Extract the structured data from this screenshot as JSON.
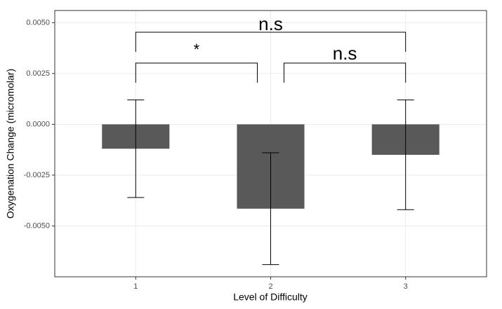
{
  "chart_data": {
    "type": "bar",
    "x_label": "Level of Difficulty",
    "y_label": "Oxygenation Change (micromolar)",
    "categories": [
      "1",
      "2",
      "3"
    ],
    "values": [
      -0.0012,
      -0.00415,
      -0.0015
    ],
    "errors": [
      0.0024,
      0.00275,
      0.0027
    ],
    "color": "#595959",
    "ylim": [
      -0.0075,
      0.0056
    ],
    "yticks": [
      {
        "value": -0.005,
        "label": "-0.0050"
      },
      {
        "value": -0.0025,
        "label": "-0.0025"
      },
      {
        "value": 0,
        "label": "0.0000"
      },
      {
        "value": 0.0025,
        "label": "0.0025"
      },
      {
        "value": 0.005,
        "label": "0.0050"
      }
    ],
    "grid": true,
    "comparisons": [
      {
        "groups": [
          "1",
          "3"
        ],
        "label": "n.s"
      },
      {
        "groups": [
          "1",
          "2"
        ],
        "label": "*"
      },
      {
        "groups": [
          "2",
          "3"
        ],
        "label": "n.s"
      }
    ]
  }
}
